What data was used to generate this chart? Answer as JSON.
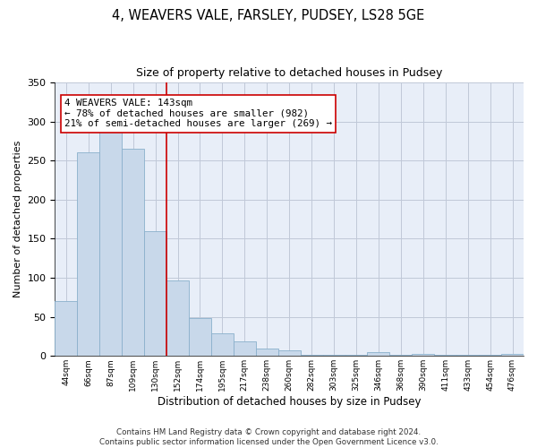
{
  "title": "4, WEAVERS VALE, FARSLEY, PUDSEY, LS28 5GE",
  "subtitle": "Size of property relative to detached houses in Pudsey",
  "xlabel": "Distribution of detached houses by size in Pudsey",
  "ylabel": "Number of detached properties",
  "bar_color": "#c8d8ea",
  "bar_edge_color": "#8ab0cc",
  "tick_labels": [
    "44sqm",
    "66sqm",
    "87sqm",
    "109sqm",
    "130sqm",
    "152sqm",
    "174sqm",
    "195sqm",
    "217sqm",
    "238sqm",
    "260sqm",
    "282sqm",
    "303sqm",
    "325sqm",
    "346sqm",
    "368sqm",
    "390sqm",
    "411sqm",
    "433sqm",
    "454sqm",
    "476sqm"
  ],
  "bar_heights": [
    70,
    261,
    292,
    265,
    160,
    97,
    48,
    29,
    19,
    9,
    7,
    2,
    2,
    1,
    5,
    1,
    3,
    1,
    1,
    1,
    3
  ],
  "ylim": [
    0,
    350
  ],
  "yticks": [
    0,
    50,
    100,
    150,
    200,
    250,
    300,
    350
  ],
  "property_line_x": 5,
  "annotation_line1": "4 WEAVERS VALE: 143sqm",
  "annotation_line2": "← 78% of detached houses are smaller (982)",
  "annotation_line3": "21% of semi-detached houses are larger (269) →",
  "red_line_color": "#cc0000",
  "footer_text": "Contains HM Land Registry data © Crown copyright and database right 2024.\nContains public sector information licensed under the Open Government Licence v3.0.",
  "background_color": "#eef2f8",
  "plot_bg_color": "#e8eef8",
  "grid_color": "#c0c8d8"
}
